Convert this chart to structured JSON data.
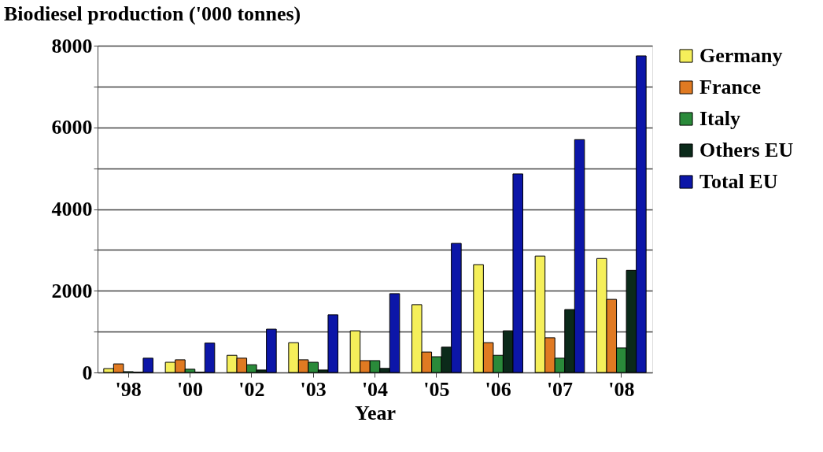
{
  "chart_data": {
    "type": "bar",
    "title": "Biodiesel production ('000 tonnes)",
    "xlabel": "Year",
    "categories": [
      "'98",
      "'00",
      "'02",
      "'03",
      "'04",
      "'05",
      "'06",
      "'07",
      "'08"
    ],
    "series": [
      {
        "name": "Germany",
        "color": "#f5ef5a",
        "values": [
          95,
          250,
          420,
          730,
          1020,
          1660,
          2640,
          2850,
          2790
        ]
      },
      {
        "name": "France",
        "color": "#e07a22",
        "values": [
          210,
          310,
          350,
          310,
          290,
          500,
          730,
          850,
          1790
        ]
      },
      {
        "name": "Italy",
        "color": "#2a8a3a",
        "values": [
          20,
          80,
          190,
          250,
          290,
          385,
          420,
          350,
          600
        ]
      },
      {
        "name": "Others EU",
        "color": "#0b2a1a",
        "values": [
          10,
          10,
          60,
          60,
          100,
          620,
          1020,
          1540,
          2500
        ]
      },
      {
        "name": "Total EU",
        "color": "#0c16a8",
        "values": [
          350,
          720,
          1060,
          1410,
          1930,
          3160,
          4860,
          5700,
          7750
        ]
      }
    ],
    "ylim": [
      0,
      8000
    ],
    "yticks": [
      0,
      {
        "value": 1000,
        "label": null
      },
      2000,
      {
        "value": 3000,
        "label": null
      },
      4000,
      {
        "value": 5000,
        "label": null
      },
      6000,
      {
        "value": 7000,
        "label": null
      },
      8000
    ],
    "grid": "y",
    "legend": "right"
  }
}
